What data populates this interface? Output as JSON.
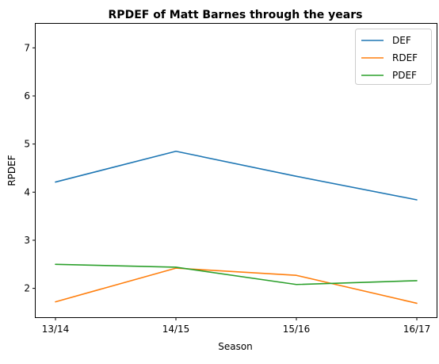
{
  "chart_data": {
    "type": "line",
    "title": "RPDEF of Matt Barnes through the years",
    "xlabel": "Season",
    "ylabel": "RPDEF",
    "categories": [
      "13/14",
      "14/15",
      "15/16",
      "16/17"
    ],
    "ylim": [
      1.4,
      7.5
    ],
    "yticks": [
      2,
      3,
      4,
      5,
      6,
      7
    ],
    "grid": false,
    "legend_position": "top-right",
    "series": [
      {
        "name": "DEF",
        "color": "#1f77b4",
        "values": [
          4.21,
          4.85,
          4.33,
          3.84
        ]
      },
      {
        "name": "RDEF",
        "color": "#ff7f0e",
        "values": [
          1.72,
          2.42,
          2.27,
          1.69
        ]
      },
      {
        "name": "PDEF",
        "color": "#2ca02c",
        "values": [
          2.5,
          2.44,
          2.08,
          2.16
        ]
      }
    ]
  }
}
